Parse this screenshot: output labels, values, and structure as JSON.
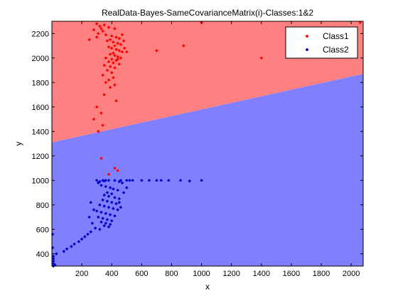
{
  "chart_data": {
    "type": "scatter",
    "title": "RealData-Bayes-SameCovarianceMatrix(i)-Classes:1&2",
    "xlabel": "x",
    "ylabel": "y",
    "xlim": [
      0,
      2080
    ],
    "ylim": [
      300,
      2300
    ],
    "xticks": [
      200,
      400,
      600,
      800,
      1000,
      1200,
      1400,
      1600,
      1800,
      2000
    ],
    "yticks": [
      400,
      600,
      800,
      1000,
      1200,
      1400,
      1600,
      1800,
      2000,
      2200
    ],
    "grid": false,
    "legend_position": "top-right",
    "decision_boundary": {
      "description": "linear boundary between class regions",
      "points": [
        [
          0,
          1310
        ],
        [
          2080,
          1870
        ]
      ],
      "region_above": "Class1",
      "region_below": "Class2",
      "region_colors": {
        "Class1": "#ff8080",
        "Class2": "#8080ff"
      }
    },
    "series": [
      {
        "name": "Class1",
        "color": "#ff0000",
        "marker": "diamond",
        "points": [
          [
            300,
            2280
          ],
          [
            320,
            2260
          ],
          [
            350,
            2270
          ],
          [
            380,
            2250
          ],
          [
            420,
            2240
          ],
          [
            340,
            2220
          ],
          [
            310,
            2200
          ],
          [
            360,
            2190
          ],
          [
            400,
            2180
          ],
          [
            430,
            2170
          ],
          [
            450,
            2160
          ],
          [
            390,
            2150
          ],
          [
            370,
            2140
          ],
          [
            410,
            2130
          ],
          [
            440,
            2120
          ],
          [
            460,
            2110
          ],
          [
            420,
            2100
          ],
          [
            380,
            2090
          ],
          [
            400,
            2080
          ],
          [
            430,
            2070
          ],
          [
            450,
            2060
          ],
          [
            470,
            2050
          ],
          [
            410,
            2040
          ],
          [
            390,
            2030
          ],
          [
            420,
            2020
          ],
          [
            440,
            2010
          ],
          [
            360,
            2000
          ],
          [
            400,
            1990
          ],
          [
            430,
            1980
          ],
          [
            380,
            1970
          ],
          [
            410,
            1960
          ],
          [
            450,
            1950
          ],
          [
            350,
            1940
          ],
          [
            390,
            1930
          ],
          [
            420,
            1920
          ],
          [
            370,
            1900
          ],
          [
            400,
            1880
          ],
          [
            340,
            1860
          ],
          [
            410,
            1840
          ],
          [
            380,
            1820
          ],
          [
            360,
            1800
          ],
          [
            420,
            1780
          ],
          [
            390,
            1760
          ],
          [
            350,
            1700
          ],
          [
            430,
            1650
          ],
          [
            300,
            1600
          ],
          [
            330,
            1550
          ],
          [
            280,
            1500
          ],
          [
            340,
            1450
          ],
          [
            310,
            1400
          ],
          [
            330,
            1180
          ],
          [
            420,
            1100
          ],
          [
            440,
            1080
          ],
          [
            380,
            1050
          ],
          [
            700,
            2060
          ],
          [
            880,
            2100
          ],
          [
            1000,
            2290
          ],
          [
            1400,
            2000
          ],
          [
            2060,
            2290
          ],
          [
            1720,
            2200
          ],
          [
            480,
            2140
          ],
          [
            500,
            2050
          ],
          [
            460,
            2000
          ],
          [
            440,
            1990
          ],
          [
            380,
            2250
          ],
          [
            330,
            2240
          ],
          [
            280,
            2230
          ],
          [
            300,
            2170
          ],
          [
            250,
            2150
          ],
          [
            470,
            2190
          ],
          [
            485,
            2080
          ]
        ]
      },
      {
        "name": "Class2",
        "color": "#0000cc",
        "marker": "diamond",
        "points": [
          [
            300,
            1000
          ],
          [
            320,
            990
          ],
          [
            350,
            995
          ],
          [
            380,
            1000
          ],
          [
            420,
            1000
          ],
          [
            450,
            990
          ],
          [
            470,
            980
          ],
          [
            500,
            1000
          ],
          [
            520,
            1000
          ],
          [
            600,
            1000
          ],
          [
            650,
            1000
          ],
          [
            700,
            1000
          ],
          [
            730,
            1000
          ],
          [
            780,
            1000
          ],
          [
            860,
            1000
          ],
          [
            920,
            995
          ],
          [
            1000,
            1000
          ],
          [
            330,
            960
          ],
          [
            360,
            950
          ],
          [
            390,
            940
          ],
          [
            410,
            930
          ],
          [
            440,
            920
          ],
          [
            370,
            900
          ],
          [
            400,
            890
          ],
          [
            350,
            880
          ],
          [
            380,
            870
          ],
          [
            420,
            860
          ],
          [
            450,
            850
          ],
          [
            340,
            840
          ],
          [
            370,
            830
          ],
          [
            400,
            820
          ],
          [
            430,
            810
          ],
          [
            320,
            800
          ],
          [
            350,
            790
          ],
          [
            380,
            780
          ],
          [
            410,
            770
          ],
          [
            440,
            760
          ],
          [
            300,
            750
          ],
          [
            330,
            740
          ],
          [
            360,
            730
          ],
          [
            390,
            720
          ],
          [
            420,
            710
          ],
          [
            310,
            700
          ],
          [
            340,
            690
          ],
          [
            370,
            680
          ],
          [
            400,
            670
          ],
          [
            330,
            660
          ],
          [
            360,
            650
          ],
          [
            390,
            640
          ],
          [
            350,
            630
          ],
          [
            380,
            620
          ],
          [
            290,
            610
          ],
          [
            320,
            600
          ],
          [
            260,
            580
          ],
          [
            240,
            560
          ],
          [
            220,
            540
          ],
          [
            200,
            520
          ],
          [
            180,
            500
          ],
          [
            150,
            480
          ],
          [
            130,
            460
          ],
          [
            100,
            440
          ],
          [
            80,
            420
          ],
          [
            30,
            400
          ],
          [
            10,
            380
          ],
          [
            10,
            360
          ],
          [
            10,
            340
          ],
          [
            10,
            320
          ],
          [
            20,
            310
          ],
          [
            10,
            300
          ],
          [
            5,
            450
          ],
          [
            5,
            560
          ],
          [
            260,
            820
          ],
          [
            280,
            760
          ],
          [
            250,
            700
          ],
          [
            270,
            650
          ],
          [
            450,
            820
          ],
          [
            460,
            780
          ],
          [
            480,
            900
          ],
          [
            500,
            940
          ],
          [
            360,
            1000
          ],
          [
            340,
            1000
          ],
          [
            310,
            980
          ],
          [
            460,
            1000
          ],
          [
            540,
            1000
          ]
        ]
      }
    ]
  }
}
